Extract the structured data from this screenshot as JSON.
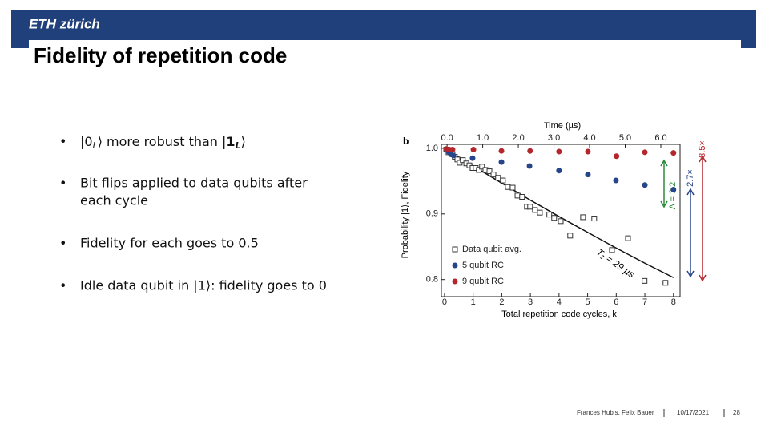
{
  "header": {
    "logo": "ETH zürich",
    "title": "Fidelity of repetition code"
  },
  "bullets": [
    [
      "|0",
      "L",
      "⟩ more robust than |",
      "1",
      "L",
      "⟩"
    ],
    [
      "Bit flips applied to data qubits after",
      "each cycle"
    ],
    [
      "Fidelity for each goes to 0.5"
    ],
    [
      "Idle data qubit in |1⟩: fidelity goes to 0"
    ]
  ],
  "chart_data": {
    "type": "scatter",
    "panel_label": "b",
    "x_label": "Total repetition code cycles, k",
    "x2_label": "Time (µs)",
    "y_label": "Probability |1⟩, Fidelity",
    "xlim": [
      -0.11,
      8.23
    ],
    "xticks": [
      0,
      1,
      2,
      3,
      4,
      5,
      6,
      7,
      8
    ],
    "x2lim": [
      -0.16,
      6.54
    ],
    "x2ticks": [
      {
        "value": 0,
        "label": "0.0"
      },
      {
        "value": 1,
        "label": "1.0"
      },
      {
        "value": 2,
        "label": "2.0"
      },
      {
        "value": 3,
        "label": "3.0"
      },
      {
        "value": 4,
        "label": "4.0"
      },
      {
        "value": 5,
        "label": "5.0"
      },
      {
        "value": 6,
        "label": "6.0"
      }
    ],
    "ylim": [
      0.774,
      1.006
    ],
    "yticks": [
      {
        "value": 0.8,
        "label": "0.8"
      },
      {
        "value": 0.9,
        "label": "0.9"
      },
      {
        "value": 1.0,
        "label": "1.0"
      }
    ],
    "legend": "lower-left",
    "series": [
      {
        "name": "Data qubit avg.",
        "color": "#333333",
        "marker": "open-square",
        "x": [
          0.06,
          0.14,
          0.2,
          0.28,
          0.36,
          0.45,
          0.53,
          0.64,
          0.76,
          0.87,
          0.98,
          1.09,
          1.2,
          1.31,
          1.43,
          1.57,
          1.71,
          1.87,
          2.04,
          2.21,
          2.38,
          2.55,
          2.71,
          2.88,
          2.99,
          3.16,
          3.33,
          3.66,
          3.83,
          4.06,
          4.39,
          4.84,
          5.23,
          5.85,
          6.41,
          6.99,
          7.72
        ],
        "values": [
          0.998,
          0.994,
          0.996,
          0.991,
          0.987,
          0.983,
          0.978,
          0.982,
          0.977,
          0.974,
          0.97,
          0.97,
          0.967,
          0.972,
          0.967,
          0.965,
          0.96,
          0.955,
          0.951,
          0.941,
          0.94,
          0.928,
          0.926,
          0.911,
          0.911,
          0.906,
          0.902,
          0.899,
          0.894,
          0.889,
          0.867,
          0.895,
          0.893,
          0.845,
          0.863,
          0.798,
          0.795
        ]
      },
      {
        "name": "5 qubit RC",
        "color": "#27468a",
        "marker": "circle",
        "x": [
          0.06,
          0.14,
          0.22,
          0.31,
          0.98,
          1.99,
          2.97,
          4.0,
          5.01,
          5.99,
          7.0,
          8.0
        ],
        "values": [
          0.998,
          0.995,
          0.991,
          0.989,
          0.985,
          0.979,
          0.973,
          0.966,
          0.96,
          0.951,
          0.944,
          0.937
        ]
      },
      {
        "name": "9 qubit RC",
        "color": "#b3262c",
        "marker": "circle",
        "x": [
          0.06,
          0.17,
          0.28,
          1.01,
          1.99,
          2.99,
          4.0,
          5.01,
          6.01,
          7.0,
          8.0
        ],
        "values": [
          0.999,
          0.998,
          0.998,
          0.998,
          0.996,
          0.996,
          0.995,
          0.995,
          0.988,
          0.994,
          0.993
        ]
      }
    ],
    "fit": {
      "label": "T₁ = 29 µs",
      "color": "#111111",
      "x": [
        0,
        1,
        2,
        3,
        4,
        5,
        6,
        7,
        8
      ],
      "values": [
        1.0,
        0.973,
        0.947,
        0.921,
        0.896,
        0.872,
        0.848,
        0.825,
        0.803
      ]
    },
    "annotations": [
      "Λ = 3.2",
      "2.7×",
      "8.5×"
    ]
  },
  "footer": {
    "authors": "Frances Hubis, Felix Bauer",
    "date": "10/17/2021",
    "page": "28"
  }
}
